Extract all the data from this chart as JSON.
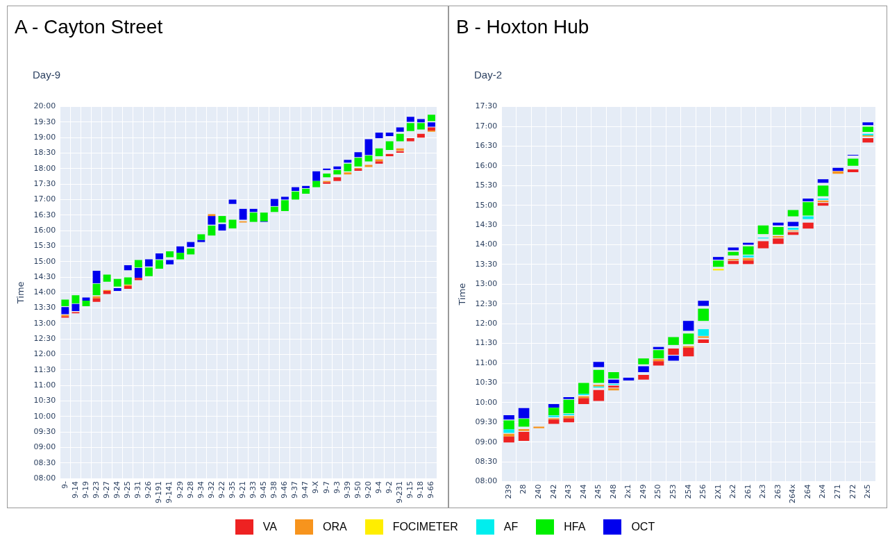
{
  "chart_data": [
    {
      "type": "bar",
      "title": "A - Cayton Street",
      "subtitle": "Day-9",
      "ylabel": "Time",
      "grid": true,
      "legend": "bottom",
      "categories": [
        "9-",
        "9-14",
        "9-19",
        "9-23",
        "9-27",
        "9-24",
        "9-25",
        "9-31",
        "9-26",
        "9-191",
        "9-141",
        "9-29",
        "9-28",
        "9-34",
        "9-32",
        "9-22",
        "9-35",
        "9-21",
        "9-33",
        "9-45",
        "9-38",
        "9-46",
        "9-37",
        "9-47",
        "9-X",
        "9-7",
        "9-3",
        "9-39",
        "9-50",
        "9-20",
        "9-4",
        "9-2",
        "9-231",
        "9-15",
        "9-18",
        "9-66"
      ],
      "ylim": [
        8,
        20
      ],
      "yticks": [
        {
          "value": 8,
          "label": "08:00"
        },
        {
          "value": 8.5,
          "label": "08:30"
        },
        {
          "value": 9,
          "label": "09:00"
        },
        {
          "value": 9.5,
          "label": "09:30"
        },
        {
          "value": 10,
          "label": "10:00"
        },
        {
          "value": 10.5,
          "label": "10:30"
        },
        {
          "value": 11,
          "label": "11:00"
        },
        {
          "value": 11.5,
          "label": "11:30"
        },
        {
          "value": 12,
          "label": "12:00"
        },
        {
          "value": 12.5,
          "label": "12:30"
        },
        {
          "value": 13,
          "label": "13:00"
        },
        {
          "value": 13.5,
          "label": "13:30"
        },
        {
          "value": 14,
          "label": "14:00"
        },
        {
          "value": 14.5,
          "label": "14:30"
        },
        {
          "value": 15,
          "label": "15:00"
        },
        {
          "value": 15.5,
          "label": "15:30"
        },
        {
          "value": 16,
          "label": "16:00"
        },
        {
          "value": 16.5,
          "label": "16:30"
        },
        {
          "value": 17,
          "label": "17:00"
        },
        {
          "value": 17.5,
          "label": "17:30"
        },
        {
          "value": 18,
          "label": "18:00"
        },
        {
          "value": 18.5,
          "label": "18:30"
        },
        {
          "value": 19,
          "label": "19:00"
        },
        {
          "value": 19.5,
          "label": "19:30"
        },
        {
          "value": 20,
          "label": "20:00"
        }
      ],
      "series": [
        {
          "name": "VA",
          "color": "#ee2222",
          "base": [
            13.19,
            13.33,
            null,
            13.7,
            13.95,
            null,
            14.12,
            14.4,
            null,
            null,
            null,
            null,
            null,
            null,
            null,
            null,
            null,
            null,
            null,
            null,
            null,
            null,
            null,
            null,
            null,
            17.51,
            17.6,
            null,
            17.93,
            null,
            18.16,
            18.4,
            18.51,
            18.88,
            19.0,
            19.23
          ],
          "values": [
            0.04,
            0.04,
            null,
            0.11,
            0.1,
            null,
            0.09,
            0.07,
            null,
            null,
            null,
            null,
            null,
            null,
            null,
            null,
            null,
            null,
            null,
            null,
            null,
            null,
            null,
            null,
            null,
            0.05,
            0.12,
            null,
            0.06,
            null,
            0.07,
            0.07,
            0.05,
            0.1,
            0.12,
            0.1
          ]
        },
        {
          "name": "ORA",
          "color": "#f7941d",
          "base": [
            13.23,
            null,
            null,
            13.81,
            14.05,
            null,
            14.21,
            null,
            null,
            null,
            null,
            null,
            null,
            null,
            16.47,
            null,
            null,
            16.26,
            null,
            null,
            null,
            null,
            null,
            null,
            null,
            17.56,
            null,
            17.81,
            17.99,
            18.05,
            18.23,
            null,
            18.58,
            null,
            null,
            19.19
          ],
          "values": [
            0.05,
            null,
            null,
            0.07,
            0.03,
            null,
            0.04,
            null,
            null,
            null,
            null,
            null,
            null,
            null,
            0.06,
            null,
            null,
            0.04,
            null,
            null,
            null,
            null,
            null,
            null,
            null,
            0.04,
            null,
            0.07,
            0.03,
            0.07,
            0.07,
            null,
            0.07,
            null,
            null,
            0.04
          ]
        },
        {
          "name": "HFA",
          "color": "#00ee00",
          "base": [
            13.56,
            13.65,
            13.56,
            13.91,
            14.35,
            14.19,
            14.26,
            14.81,
            14.53,
            14.77,
            15.14,
            15.07,
            15.23,
            15.7,
            15.84,
            16.26,
            16.07,
            null,
            16.28,
            16.3,
            16.6,
            16.63,
            17.0,
            17.19,
            17.4,
            17.72,
            17.81,
            17.91,
            18.07,
            18.23,
            18.4,
            18.6,
            18.88,
            19.21,
            19.26,
            19.53
          ],
          "values": [
            0.21,
            0.26,
            0.18,
            0.37,
            0.23,
            0.25,
            0.23,
            0.24,
            0.28,
            0.28,
            0.19,
            0.21,
            0.19,
            0.18,
            0.32,
            0.21,
            0.28,
            null,
            0.3,
            0.28,
            0.17,
            0.35,
            0.26,
            0.16,
            0.2,
            0.12,
            0.14,
            0.25,
            0.28,
            0.19,
            0.25,
            0.28,
            0.24,
            0.26,
            0.21,
            0.21
          ]
        },
        {
          "name": "OCT",
          "color": "#0000ee",
          "base": [
            13.3,
            13.4,
            13.74,
            14.3,
            null,
            14.05,
            14.72,
            14.47,
            14.84,
            15.07,
            14.91,
            15.28,
            15.47,
            15.63,
            16.19,
            16.0,
            16.86,
            16.35,
            16.6,
            16.28,
            16.79,
            17.0,
            17.28,
            17.37,
            17.6,
            17.95,
            17.98,
            18.19,
            18.37,
            18.44,
            18.98,
            19.05,
            19.19,
            19.51,
            19.49,
            19.35
          ],
          "values": [
            0.23,
            0.23,
            0.1,
            0.4,
            null,
            0.09,
            0.16,
            0.32,
            0.23,
            0.19,
            0.14,
            0.21,
            0.16,
            0.07,
            0.28,
            0.21,
            0.14,
            0.35,
            0.1,
            0.03,
            0.23,
            0.09,
            0.12,
            0.07,
            0.31,
            0.05,
            0.09,
            0.09,
            0.16,
            0.51,
            0.18,
            0.11,
            0.14,
            0.16,
            0.11,
            0.14
          ]
        }
      ]
    },
    {
      "type": "bar",
      "title": "B - Hoxton Hub",
      "subtitle": "Day-2",
      "ylabel": "Time",
      "grid": true,
      "legend": "bottom",
      "categories": [
        "239",
        "28",
        "240",
        "242",
        "243",
        "244",
        "245",
        "248",
        "2x1",
        "249",
        "250",
        "253",
        "254",
        "256",
        "2X1",
        "2x2",
        "261",
        "2x3",
        "263",
        "264x",
        "264",
        "2x4",
        "271",
        "272",
        "2x5"
      ],
      "ylim": [
        8,
        17.5
      ],
      "yticks": [
        {
          "value": 8,
          "label": "08:00"
        },
        {
          "value": 8.5,
          "label": "08:30"
        },
        {
          "value": 9,
          "label": "09:00"
        },
        {
          "value": 9.5,
          "label": "09:30"
        },
        {
          "value": 10,
          "label": "10:00"
        },
        {
          "value": 10.5,
          "label": "10:30"
        },
        {
          "value": 11,
          "label": "11:00"
        },
        {
          "value": 11.5,
          "label": "11:30"
        },
        {
          "value": 12,
          "label": "12:00"
        },
        {
          "value": 12.5,
          "label": "12:30"
        },
        {
          "value": 13,
          "label": "13:00"
        },
        {
          "value": 13.5,
          "label": "13:30"
        },
        {
          "value": 14,
          "label": "14:00"
        },
        {
          "value": 14.5,
          "label": "14:30"
        },
        {
          "value": 15,
          "label": "15:00"
        },
        {
          "value": 15.5,
          "label": "15:30"
        },
        {
          "value": 16,
          "label": "16:00"
        },
        {
          "value": 16.5,
          "label": "16:30"
        },
        {
          "value": 17,
          "label": "17:00"
        },
        {
          "value": 17.5,
          "label": "17:30"
        }
      ],
      "series": [
        {
          "name": "VA",
          "color": "#ee2222",
          "base": [
            8.99,
            9.03,
            null,
            9.46,
            9.5,
            9.96,
            10.04,
            10.38,
            null,
            10.58,
            10.94,
            11.21,
            11.17,
            11.51,
            null,
            13.51,
            13.51,
            13.91,
            14.02,
            14.25,
            14.41,
            14.99,
            null,
            15.84,
            16.59
          ],
          "values": [
            0.15,
            0.23,
            null,
            0.11,
            0.1,
            0.15,
            0.28,
            0.05,
            null,
            0.12,
            0.11,
            0.16,
            0.22,
            0.09,
            null,
            0.08,
            0.09,
            0.18,
            0.14,
            0.07,
            0.15,
            0.07,
            null,
            0.07,
            0.11
          ]
        },
        {
          "name": "ORA",
          "color": "#f7941d",
          "base": [
            9.14,
            9.28,
            9.35,
            9.57,
            9.6,
            10.11,
            10.41,
            10.31,
            null,
            null,
            11.05,
            null,
            11.39,
            11.64,
            null,
            13.6,
            13.6,
            null,
            14.18,
            14.34,
            null,
            15.08,
            15.8,
            null,
            16.74
          ],
          "values": [
            0.07,
            0.05,
            0.04,
            0.03,
            0.06,
            0.05,
            0.04,
            0.05,
            null,
            null,
            0.05,
            null,
            0.04,
            0.04,
            null,
            0.04,
            0.06,
            null,
            0.04,
            0.02,
            null,
            0.04,
            0.06,
            null,
            0.03
          ]
        },
        {
          "name": "FOCIMETER",
          "color": "#ffee00",
          "base": [
            null,
            null,
            null,
            null,
            null,
            null,
            null,
            null,
            null,
            null,
            null,
            null,
            null,
            null,
            13.35,
            null,
            null,
            null,
            null,
            null,
            null,
            null,
            null,
            null,
            null
          ],
          "values": [
            null,
            null,
            null,
            null,
            null,
            null,
            null,
            null,
            null,
            null,
            null,
            null,
            null,
            null,
            0.04,
            null,
            null,
            null,
            null,
            null,
            null,
            null,
            null,
            null,
            null
          ]
        },
        {
          "name": "AF",
          "color": "#00eeee",
          "base": [
            9.23,
            null,
            null,
            9.63,
            9.68,
            10.19,
            10.38,
            10.45,
            null,
            null,
            null,
            null,
            null,
            11.69,
            null,
            null,
            13.68,
            14.16,
            null,
            14.38,
            14.65,
            15.14,
            null,
            null,
            16.77
          ],
          "values": [
            0.09,
            null,
            null,
            0.04,
            0.03,
            0.03,
            0.03,
            0.02,
            null,
            null,
            null,
            null,
            null,
            0.17,
            null,
            null,
            0.05,
            0.02,
            null,
            0.05,
            0.07,
            0.03,
            null,
            null,
            0.04
          ]
        },
        {
          "name": "HFA",
          "color": "#00ee00",
          "base": [
            9.32,
            9.39,
            null,
            9.68,
            9.73,
            10.22,
            10.5,
            10.61,
            null,
            10.97,
            11.12,
            11.46,
            11.48,
            12.07,
            13.44,
            13.73,
            13.75,
            14.27,
            14.25,
            14.72,
            14.74,
            15.23,
            null,
            16.0,
            16.86
          ],
          "values": [
            0.23,
            0.2,
            null,
            0.19,
            0.34,
            0.28,
            0.33,
            0.16,
            null,
            0.15,
            0.21,
            0.2,
            0.27,
            0.31,
            0.16,
            0.09,
            0.21,
            0.22,
            0.2,
            0.16,
            0.34,
            0.27,
            null,
            0.18,
            0.13
          ]
        },
        {
          "name": "OCT",
          "color": "#0000ee",
          "base": [
            9.57,
            9.6,
            null,
            9.87,
            10.09,
            null,
            10.9,
            10.49,
            10.56,
            10.77,
            11.35,
            11.06,
            11.82,
            12.45,
            13.62,
            13.86,
            14.0,
            null,
            14.49,
            14.47,
            15.1,
            15.57,
            15.87,
            16.26,
            17.03
          ],
          "values": [
            0.11,
            0.26,
            null,
            0.09,
            0.05,
            null,
            0.13,
            0.09,
            0.07,
            0.15,
            0.06,
            0.13,
            0.25,
            0.13,
            0.07,
            0.07,
            0.05,
            null,
            0.07,
            0.11,
            0.07,
            0.09,
            0.08,
            0.02,
            0.07
          ]
        }
      ]
    }
  ]
}
